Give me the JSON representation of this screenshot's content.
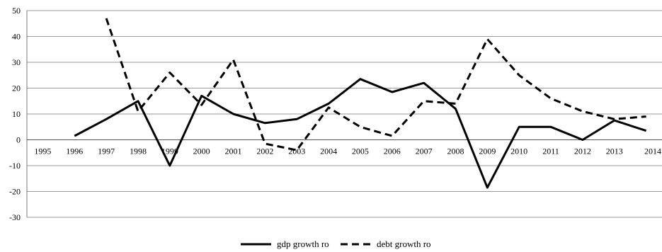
{
  "chart_data": {
    "type": "line",
    "title": "",
    "xlabel": "",
    "ylabel": "",
    "categories": [
      "1995",
      "1996",
      "1997",
      "1998",
      "1999",
      "2000",
      "2001",
      "2002",
      "2003",
      "2004",
      "2005",
      "2006",
      "2007",
      "2008",
      "2009",
      "2010",
      "2011",
      "2012",
      "2013",
      "2014"
    ],
    "ylim": [
      -30,
      50
    ],
    "yticks": [
      50,
      40,
      30,
      20,
      10,
      0,
      -10,
      -20,
      -30
    ],
    "grid": "horizontal",
    "legend_position": "bottom-center",
    "series": [
      {
        "name": "gdp growth ro",
        "style": "solid",
        "color": "#000000",
        "values": [
          null,
          1.5,
          8,
          15,
          -10,
          17,
          10,
          6.5,
          8,
          14,
          23.5,
          18.5,
          22,
          12,
          -18.5,
          5,
          5,
          0,
          7.5,
          3.5
        ]
      },
      {
        "name": "debt growth ro",
        "style": "dashed",
        "color": "#000000",
        "values": [
          null,
          null,
          47,
          11,
          26,
          13.5,
          31,
          -1.5,
          -4,
          12.5,
          5,
          1.5,
          15,
          14,
          39,
          25,
          16,
          11,
          8,
          9
        ]
      }
    ]
  }
}
